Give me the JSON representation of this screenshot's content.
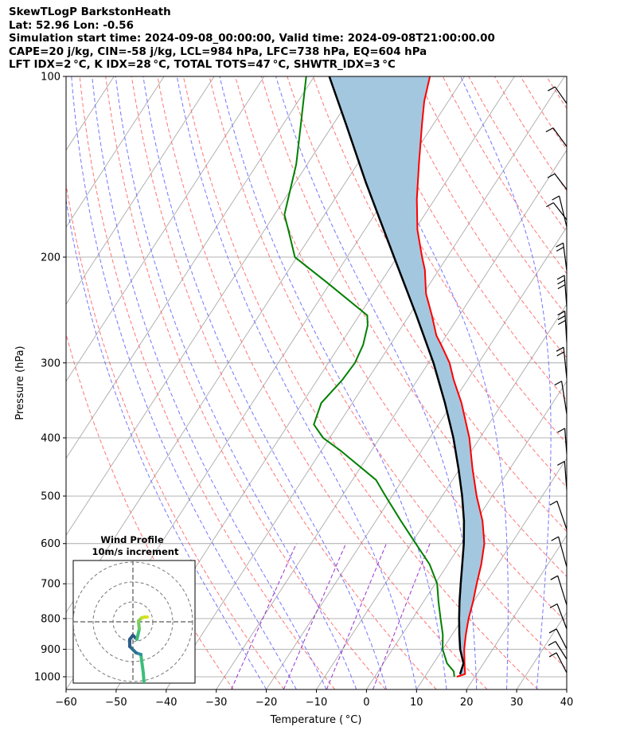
{
  "header": {
    "line1": "SkewTLogP BarkstonHeath",
    "line2": "Lat: 52.96   Lon: -0.56",
    "line3": "Simulation start time: 2024-09-08_00:00:00, Valid time: 2024-09-08T21:00:00.00",
    "line4": "CAPE=20 j/kg, CIN=-58 j/kg, LCL=984 hPa, LFC=738 hPa, EQ=604 hPa",
    "line5": "LFT IDX=2 °C, K IDX=28 °C, TOTAL TOTS=47 °C, SHWTR_IDX=3 °C"
  },
  "chart_data": {
    "type": "line",
    "subtype": "skew-t log-p",
    "xlabel": "Temperature ( °C)",
    "ylabel": "Pressure (hPa)",
    "xlim": [
      -60,
      40
    ],
    "ylim": [
      1050,
      100
    ],
    "y_scale": "log",
    "grid": true,
    "x_ticks": [
      "−60",
      "−50",
      "−40",
      "−30",
      "−20",
      "−10",
      "0",
      "10",
      "20",
      "30",
      "40"
    ],
    "y_ticks": [
      "100",
      "200",
      "300",
      "400",
      "500",
      "600",
      "700",
      "800",
      "900",
      "1000"
    ],
    "colors": {
      "temperature": "#ff0000",
      "dewpoint": "#008000",
      "parcel": "#000000",
      "cape_fill": "#a3c7df",
      "dry_adiabat": "#ff6666",
      "moist_adiabat": "#6666ff",
      "mixing_ratio": "#9932cc",
      "isotherm": "#aaaaaa"
    },
    "series": [
      {
        "key": "temperature",
        "points": [
          [
            1000,
            16.4
          ],
          [
            990,
            17.7
          ],
          [
            950,
            16.2
          ],
          [
            900,
            14.3
          ],
          [
            850,
            12.7
          ],
          [
            800,
            11.2
          ],
          [
            750,
            9.9
          ],
          [
            700,
            8.3
          ],
          [
            650,
            6.7
          ],
          [
            600,
            4.6
          ],
          [
            550,
            1.3
          ],
          [
            500,
            -3.1
          ],
          [
            450,
            -7.5
          ],
          [
            400,
            -12.1
          ],
          [
            350,
            -18.2
          ],
          [
            320,
            -22.8
          ],
          [
            300,
            -25.8
          ],
          [
            280,
            -29.8
          ],
          [
            270,
            -32.0
          ],
          [
            250,
            -35.5
          ],
          [
            230,
            -39.5
          ],
          [
            210,
            -42.8
          ],
          [
            200,
            -45.0
          ],
          [
            180,
            -49.5
          ],
          [
            160,
            -53.6
          ],
          [
            140,
            -57.7
          ],
          [
            120,
            -62.3
          ],
          [
            110,
            -64.8
          ],
          [
            100,
            -66.9
          ]
        ]
      },
      {
        "key": "dewpoint",
        "points": [
          [
            1000,
            15.9
          ],
          [
            980,
            15.1
          ],
          [
            950,
            12.7
          ],
          [
            900,
            10.0
          ],
          [
            850,
            8.1
          ],
          [
            800,
            5.6
          ],
          [
            750,
            3.0
          ],
          [
            700,
            0.4
          ],
          [
            650,
            -3.6
          ],
          [
            600,
            -9.1
          ],
          [
            550,
            -15.0
          ],
          [
            500,
            -21.3
          ],
          [
            470,
            -25.3
          ],
          [
            420,
            -36.2
          ],
          [
            400,
            -41.3
          ],
          [
            380,
            -44.9
          ],
          [
            350,
            -46.2
          ],
          [
            320,
            -45.0
          ],
          [
            300,
            -44.7
          ],
          [
            280,
            -45.4
          ],
          [
            260,
            -47.0
          ],
          [
            250,
            -48.4
          ],
          [
            220,
            -60.9
          ],
          [
            200,
            -70.4
          ],
          [
            180,
            -75.3
          ],
          [
            170,
            -78.0
          ],
          [
            140,
            -82.2
          ],
          [
            120,
            -86.5
          ],
          [
            100,
            -91.6
          ]
        ]
      },
      {
        "key": "parcel",
        "points": [
          [
            990,
            16.7
          ],
          [
            950,
            16.0
          ],
          [
            900,
            13.5
          ],
          [
            850,
            11.4
          ],
          [
            800,
            9.3
          ],
          [
            750,
            7.2
          ],
          [
            700,
            5.1
          ],
          [
            650,
            2.9
          ],
          [
            600,
            0.5
          ],
          [
            550,
            -2.4
          ],
          [
            500,
            -6.0
          ],
          [
            450,
            -10.3
          ],
          [
            400,
            -15.3
          ],
          [
            350,
            -21.5
          ],
          [
            300,
            -29.0
          ],
          [
            250,
            -38.6
          ],
          [
            200,
            -50.6
          ],
          [
            150,
            -66.0
          ],
          [
            120,
            -77.5
          ],
          [
            100,
            -87.0
          ]
        ]
      }
    ],
    "hodograph": {
      "title": "Wind Profile",
      "subtitle": "10m/s increment"
    }
  }
}
